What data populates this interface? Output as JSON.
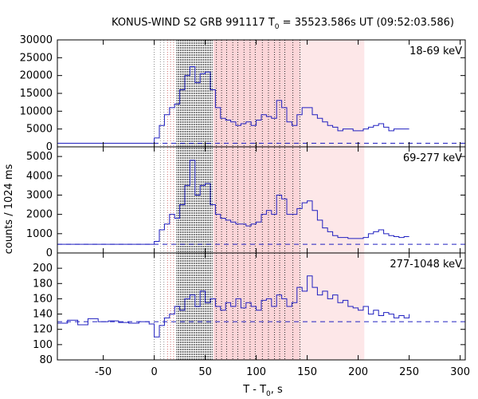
{
  "chart_data": {
    "type": "line",
    "title": "KONUS-WIND S2 GRB 991117 T",
    "title_sub": "0",
    "title_rest": " = 35523.586s UT (09:52:03.586)",
    "xlabel_main": "T - T",
    "xlabel_sub": "0",
    "xlabel_rest": ", s",
    "ylabel": "counts / 1024 ms",
    "xlim": [
      -95,
      305
    ],
    "xticks": [
      -50,
      0,
      50,
      100,
      150,
      200,
      250,
      300
    ],
    "grid": false,
    "line_color": "#2020c0",
    "shading": [
      {
        "x0": 58,
        "x1": 143,
        "color": "#fbd5d8"
      },
      {
        "x0": 143,
        "x1": 206,
        "color": "#fde7e8"
      }
    ],
    "markers": {
      "dotted_gray": [
        0,
        6,
        9.5
      ],
      "dotted_red": [
        13,
        16,
        19
      ],
      "dense_black_range": [
        22,
        57
      ],
      "dense_black_step": 1.2,
      "dotted_black_after": [
        61,
        66,
        71,
        77,
        82,
        88,
        94,
        99,
        106,
        112,
        118,
        123,
        128,
        136,
        143
      ]
    },
    "panels": [
      {
        "label": "18-69 keV",
        "ylim": [
          0,
          30000
        ],
        "yticks": [
          0,
          5000,
          10000,
          15000,
          20000,
          25000,
          30000
        ],
        "background": 1000,
        "x": [
          -95,
          -10,
          0,
          5,
          10,
          15,
          20,
          25,
          30,
          35,
          40,
          45,
          50,
          55,
          60,
          65,
          70,
          75,
          80,
          85,
          90,
          95,
          100,
          105,
          110,
          115,
          120,
          125,
          130,
          135,
          140,
          145,
          150,
          155,
          160,
          165,
          170,
          175,
          180,
          185,
          190,
          195,
          200,
          205,
          210,
          215,
          220,
          225,
          230,
          235,
          240,
          245,
          250
        ],
        "y": [
          1000,
          1000,
          2500,
          6000,
          9000,
          11000,
          12000,
          16000,
          20000,
          22500,
          18000,
          20500,
          21000,
          16000,
          11000,
          8000,
          7500,
          7000,
          6000,
          6500,
          7000,
          6000,
          7500,
          9000,
          8500,
          8000,
          13000,
          11000,
          7000,
          6000,
          9000,
          11000,
          11000,
          9000,
          8000,
          7000,
          6000,
          5500,
          4500,
          5000,
          5000,
          4500,
          4500,
          5000,
          5500,
          6000,
          6500,
          5500,
          4500,
          5000,
          5000,
          5000,
          5000
        ]
      },
      {
        "label": "69-277 keV",
        "ylim": [
          0,
          5500
        ],
        "yticks": [
          0,
          1000,
          2000,
          3000,
          4000,
          5000
        ],
        "background": 450,
        "x": [
          -95,
          -10,
          0,
          5,
          10,
          15,
          20,
          25,
          30,
          35,
          40,
          45,
          50,
          55,
          60,
          65,
          70,
          75,
          80,
          85,
          90,
          95,
          100,
          105,
          110,
          115,
          120,
          125,
          130,
          135,
          140,
          145,
          150,
          155,
          160,
          165,
          170,
          175,
          180,
          185,
          190,
          195,
          200,
          205,
          210,
          215,
          220,
          225,
          230,
          235,
          240,
          245,
          250
        ],
        "y": [
          450,
          450,
          600,
          1200,
          1500,
          2000,
          1800,
          2500,
          3500,
          4800,
          3000,
          3500,
          3600,
          2500,
          2000,
          1800,
          1700,
          1600,
          1500,
          1500,
          1400,
          1500,
          1600,
          2000,
          2200,
          2000,
          3000,
          2800,
          2000,
          2000,
          2300,
          2600,
          2700,
          2200,
          1700,
          1300,
          1100,
          900,
          800,
          800,
          750,
          750,
          750,
          800,
          1000,
          1100,
          1200,
          1000,
          900,
          850,
          800,
          850,
          850
        ]
      },
      {
        "label": "277-1048 keV",
        "ylim": [
          80,
          220
        ],
        "yticks": [
          80,
          100,
          120,
          140,
          160,
          180,
          200
        ],
        "background": 130,
        "x": [
          -95,
          -85,
          -75,
          -65,
          -55,
          -45,
          -35,
          -25,
          -15,
          -5,
          0,
          5,
          10,
          15,
          20,
          25,
          30,
          35,
          40,
          45,
          50,
          55,
          60,
          65,
          70,
          75,
          80,
          85,
          90,
          95,
          100,
          105,
          110,
          115,
          120,
          125,
          130,
          135,
          140,
          145,
          150,
          155,
          160,
          165,
          170,
          175,
          180,
          185,
          190,
          195,
          200,
          205,
          210,
          215,
          220,
          225,
          230,
          235,
          240,
          245,
          250
        ],
        "y": [
          128,
          132,
          126,
          134,
          130,
          131,
          129,
          128,
          130,
          127,
          110,
          125,
          135,
          140,
          150,
          145,
          160,
          165,
          150,
          170,
          155,
          160,
          150,
          145,
          155,
          150,
          160,
          148,
          155,
          150,
          145,
          158,
          160,
          150,
          165,
          160,
          150,
          155,
          175,
          170,
          190,
          175,
          165,
          170,
          160,
          165,
          155,
          158,
          150,
          148,
          145,
          150,
          140,
          145,
          138,
          142,
          140,
          135,
          138,
          135,
          140
        ]
      }
    ]
  }
}
